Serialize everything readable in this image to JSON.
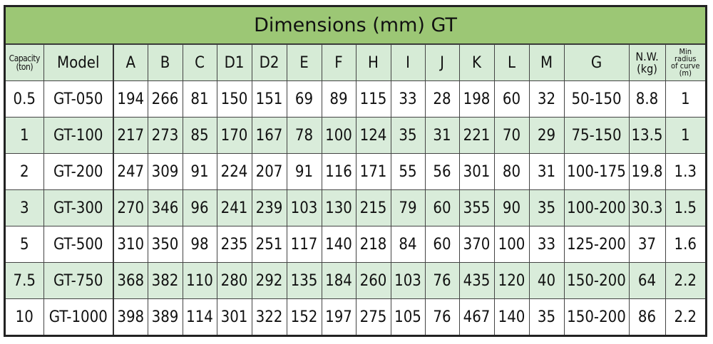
{
  "title": "Dimensions (mm) GT",
  "headers": {
    "capacity": [
      "Capacity",
      "(ton)"
    ],
    "model": "Model",
    "dims": [
      "A",
      "B",
      "C",
      "D1",
      "D2",
      "E",
      "F",
      "H",
      "I",
      "J",
      "K",
      "L",
      "M",
      "G"
    ],
    "nw": [
      "N.W.",
      "(kg)"
    ],
    "radius": [
      "Min",
      "radius",
      "of curve",
      "(m)"
    ]
  },
  "rows": [
    [
      "0.5",
      "GT-050",
      "194",
      "266",
      "81",
      "150",
      "151",
      "69",
      "89",
      "115",
      "33",
      "28",
      "198",
      "60",
      "32",
      "50-150",
      "8.8",
      "1"
    ],
    [
      "1",
      "GT-100",
      "217",
      "273",
      "85",
      "170",
      "167",
      "78",
      "100",
      "124",
      "35",
      "31",
      "221",
      "70",
      "29",
      "75-150",
      "13.5",
      "1"
    ],
    [
      "2",
      "GT-200",
      "247",
      "309",
      "91",
      "224",
      "207",
      "91",
      "116",
      "171",
      "55",
      "56",
      "301",
      "80",
      "31",
      "100-175",
      "19.8",
      "1.3"
    ],
    [
      "3",
      "GT-300",
      "270",
      "346",
      "96",
      "241",
      "239",
      "103",
      "130",
      "215",
      "79",
      "60",
      "355",
      "90",
      "35",
      "100-200",
      "30.3",
      "1.5"
    ],
    [
      "5",
      "GT-500",
      "310",
      "350",
      "98",
      "235",
      "251",
      "117",
      "140",
      "218",
      "84",
      "60",
      "370",
      "100",
      "33",
      "125-200",
      "37",
      "1.6"
    ],
    [
      "7.5",
      "GT-750",
      "368",
      "382",
      "110",
      "280",
      "292",
      "135",
      "184",
      "260",
      "103",
      "76",
      "435",
      "120",
      "40",
      "150-200",
      "64",
      "2.2"
    ],
    [
      "10",
      "GT-1000",
      "398",
      "389",
      "114",
      "301",
      "322",
      "152",
      "197",
      "275",
      "105",
      "76",
      "467",
      "140",
      "35",
      "150-200",
      "86",
      "2.2"
    ]
  ],
  "colors": {
    "title_bg": "#9cc775",
    "header_bg": "#d6ebd6",
    "band_bg": "#d9ecda"
  }
}
